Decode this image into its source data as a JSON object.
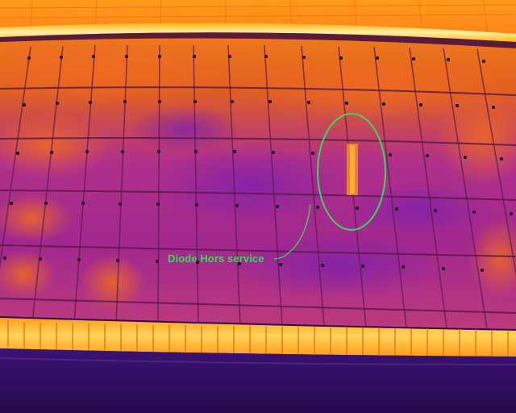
{
  "annotation": {
    "label": "Diode Hors service",
    "color": "#3ed65a"
  },
  "palette": {
    "hot_white": "#fff4a8",
    "hot_yellow": "#ffb31a",
    "warm_orange": "#f06a1e",
    "mid_magenta": "#b02a8c",
    "cool_purple": "#7a1fa8",
    "cold_indigo": "#2a0a55",
    "grid_line": "#3a0c3a"
  }
}
